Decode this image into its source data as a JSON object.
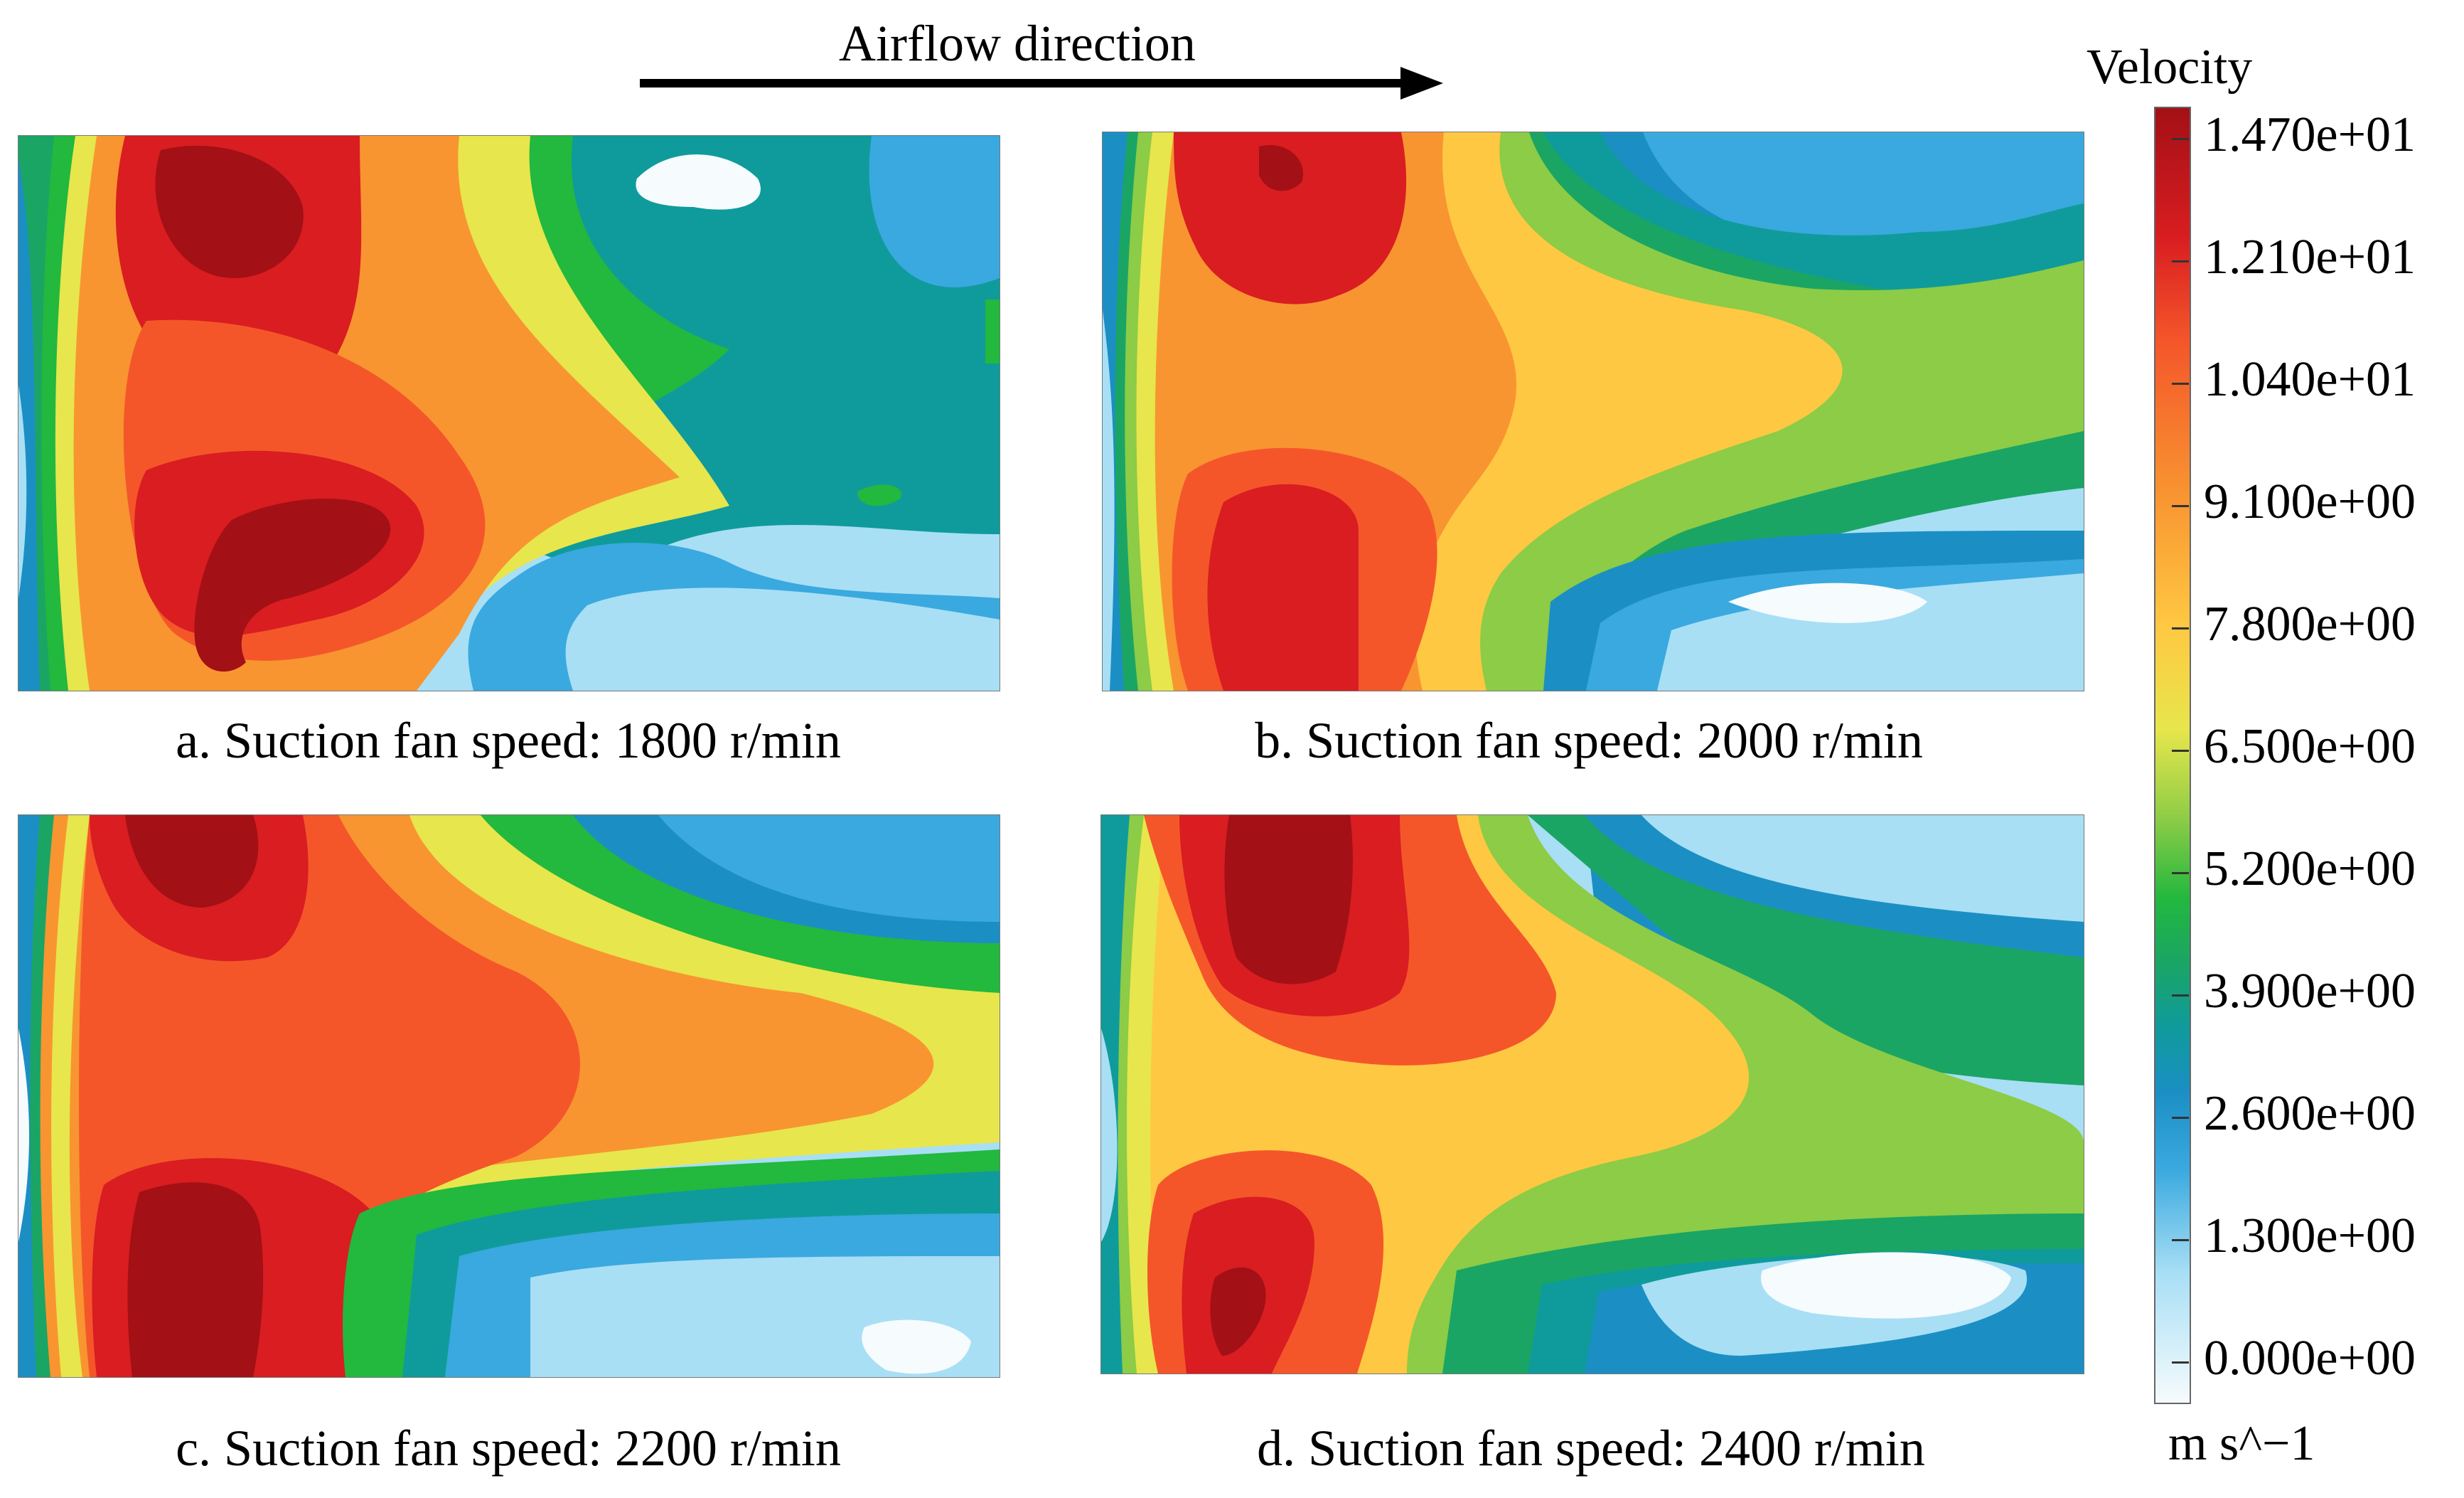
{
  "header": {
    "arrow_label": "Airflow direction"
  },
  "panels": [
    {
      "id": "a",
      "caption": "a. Suction fan speed: 1800 r/min"
    },
    {
      "id": "b",
      "caption": "b. Suction fan speed: 2000 r/min"
    },
    {
      "id": "c",
      "caption": "c. Suction fan speed: 2200 r/min"
    },
    {
      "id": "d",
      "caption": "d. Suction fan speed: 2400 r/min"
    }
  ],
  "legend": {
    "title": "Velocity",
    "units": "m s^−1",
    "labels": [
      "1.470e+01",
      "1.210e+01",
      "1.040e+01",
      "9.100e+00",
      "7.800e+00",
      "6.500e+00",
      "5.200e+00",
      "3.900e+00",
      "2.600e+00",
      "1.300e+00",
      "0.000e+00"
    ],
    "colors": {
      "c0": "#f6fbfd",
      "c1": "#a8dff5",
      "c2": "#3aa9df",
      "c3": "#1b8fc4",
      "c4": "#0f9b9b",
      "c5": "#1aa564",
      "c6": "#23b83e",
      "c7": "#8ccc46",
      "c8": "#e7e64c",
      "c9": "#ffc842",
      "c10": "#f89531",
      "c11": "#f4562a",
      "c12": "#d91d21",
      "c13": "#a31016"
    }
  }
}
